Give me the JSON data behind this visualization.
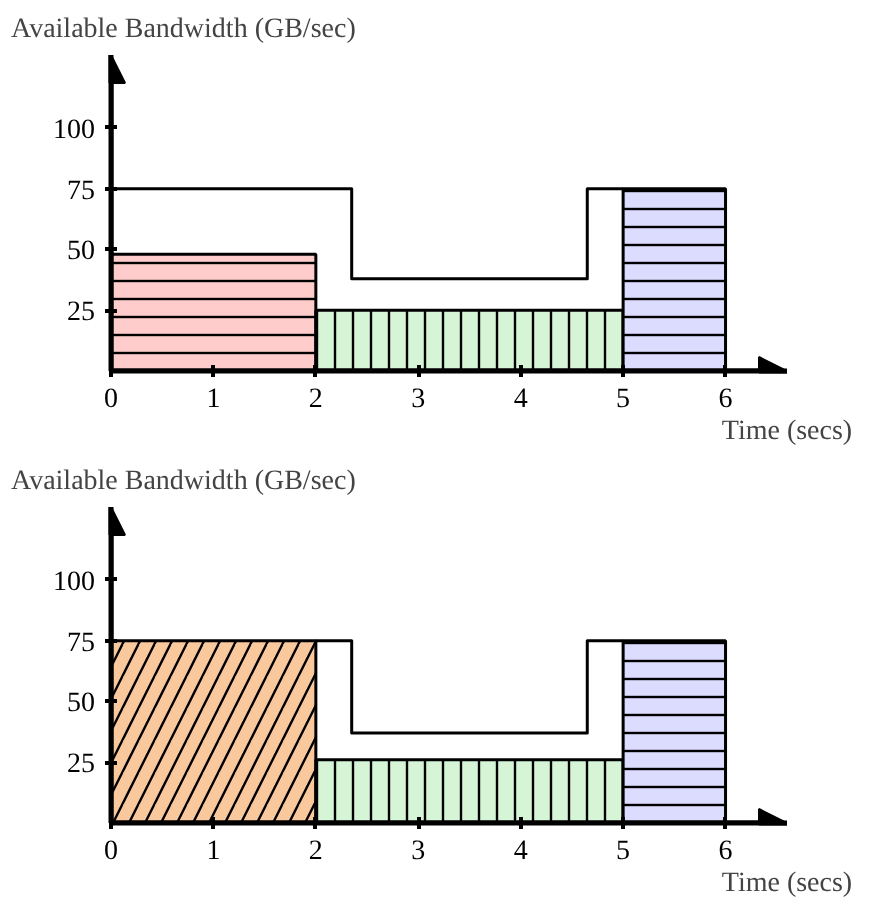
{
  "chart_data": [
    {
      "type": "area",
      "xlabel": "Time (secs)",
      "ylabel": "Available Bandwidth (GB/sec)",
      "xlim": [
        0,
        6.6
      ],
      "ylim": [
        0,
        130
      ],
      "xticks": [
        0,
        1,
        2,
        3,
        4,
        5,
        6
      ],
      "yticks": [
        25,
        50,
        75,
        100
      ],
      "grid": false,
      "series": [
        {
          "color": "#ffcccc",
          "x": [
            0,
            2
          ],
          "values": [
            48,
            48
          ]
        },
        {
          "color": "#d6f5d6",
          "x": [
            2,
            5
          ],
          "values": [
            25,
            25
          ]
        },
        {
          "color": "#dcdcff",
          "x": [
            5,
            6
          ],
          "values": [
            75,
            75
          ]
        },
        {
          "type": "step",
          "color": "#000000",
          "x": [
            0,
            2.35,
            4.65,
            5
          ],
          "values": [
            75,
            38,
            75,
            75
          ]
        }
      ]
    },
    {
      "type": "area",
      "xlabel": "Time (secs)",
      "ylabel": "Available Bandwidth (GB/sec)",
      "xlim": [
        0,
        6.6
      ],
      "ylim": [
        0,
        130
      ],
      "xticks": [
        0,
        1,
        2,
        3,
        4,
        5,
        6
      ],
      "yticks": [
        25,
        50,
        75,
        100
      ],
      "grid": false,
      "series": [
        {
          "color": "#f9c99d",
          "x": [
            0,
            2
          ],
          "values": [
            75,
            75
          ]
        },
        {
          "color": "#d6f5d6",
          "x": [
            2,
            5
          ],
          "values": [
            26,
            26
          ]
        },
        {
          "color": "#dcdcff",
          "x": [
            5,
            6
          ],
          "values": [
            75,
            75
          ]
        },
        {
          "type": "step",
          "color": "#000000",
          "x": [
            2,
            2.35,
            4.65,
            5
          ],
          "values": [
            75,
            37,
            75,
            75
          ]
        }
      ]
    }
  ]
}
